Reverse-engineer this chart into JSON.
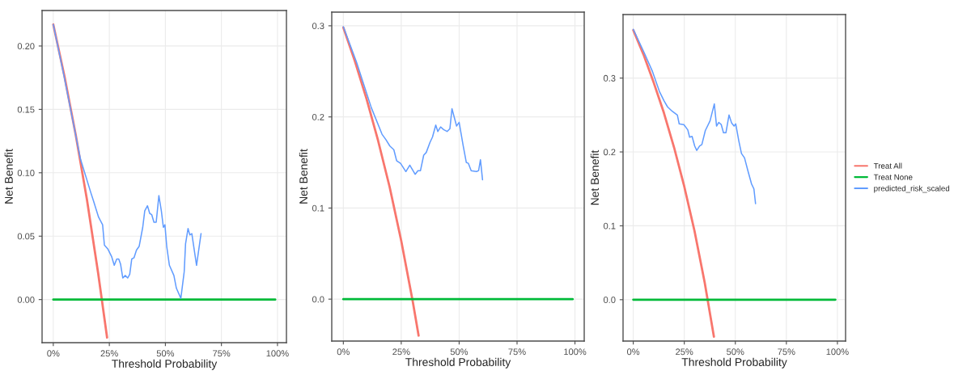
{
  "chart_data": [
    {
      "type": "line",
      "xlabel": "Threshold Probability",
      "ylabel": "Net Benefit",
      "xlim": [
        -0.05,
        1.04
      ],
      "ylim": [
        -0.034,
        0.228
      ],
      "xticks": [
        {
          "value": 0,
          "label": "0%"
        },
        {
          "value": 0.25,
          "label": "25%"
        },
        {
          "value": 0.5,
          "label": "50%"
        },
        {
          "value": 0.75,
          "label": "75%"
        },
        {
          "value": 1,
          "label": "100%"
        }
      ],
      "yticks": [
        {
          "value": 0,
          "label": "0.00"
        },
        {
          "value": 0.05,
          "label": "0.05"
        },
        {
          "value": 0.1,
          "label": "0.10"
        },
        {
          "value": 0.15,
          "label": "0.15"
        },
        {
          "value": 0.2,
          "label": "0.20"
        }
      ],
      "grid": true,
      "legend": false,
      "series": [
        {
          "color": "#f8766d",
          "x": [
            0,
            0.05,
            0.1,
            0.15,
            0.2,
            0.24
          ],
          "values": [
            0.217,
            0.176,
            0.13,
            0.079,
            0.021,
            -0.03
          ]
        },
        {
          "color": "#00ba38",
          "x": [
            0,
            0.99
          ],
          "values": [
            0,
            0
          ]
        },
        {
          "color": "#619cff",
          "x": [
            0,
            0.046,
            0.121,
            0.168,
            0.179,
            0.202,
            0.22,
            0.228,
            0.243,
            0.26,
            0.272,
            0.283,
            0.292,
            0.3,
            0.31,
            0.321,
            0.332,
            0.341,
            0.35,
            0.36,
            0.371,
            0.383,
            0.399,
            0.408,
            0.42,
            0.43,
            0.439,
            0.449,
            0.459,
            0.471,
            0.482,
            0.491,
            0.498,
            0.506,
            0.518,
            0.538,
            0.549,
            0.569,
            0.584,
            0.59,
            0.601,
            0.609,
            0.618,
            0.639,
            0.659
          ],
          "values": [
            0.217,
            0.178,
            0.111,
            0.084,
            0.078,
            0.065,
            0.059,
            0.043,
            0.04,
            0.034,
            0.027,
            0.032,
            0.032,
            0.028,
            0.017,
            0.019,
            0.017,
            0.02,
            0.032,
            0.033,
            0.039,
            0.042,
            0.057,
            0.07,
            0.074,
            0.068,
            0.067,
            0.061,
            0.061,
            0.082,
            0.07,
            0.057,
            0.059,
            0.042,
            0.027,
            0.019,
            0.009,
            0.001,
            0.022,
            0.044,
            0.056,
            0.051,
            0.052,
            0.027,
            0.052
          ]
        }
      ]
    },
    {
      "type": "line",
      "xlabel": "Threshold Probability",
      "ylabel": "Net Benefit",
      "xlim": [
        -0.05,
        1.04
      ],
      "ylim": [
        -0.046,
        0.315
      ],
      "xticks": [
        {
          "value": 0,
          "label": "0%"
        },
        {
          "value": 0.25,
          "label": "25%"
        },
        {
          "value": 0.5,
          "label": "50%"
        },
        {
          "value": 0.75,
          "label": "75%"
        },
        {
          "value": 1,
          "label": "100%"
        }
      ],
      "yticks": [
        {
          "value": 0,
          "label": "0.0"
        },
        0.1,
        0.2,
        0.3
      ],
      "grid": true,
      "legend": false,
      "series": [
        {
          "color": "#f8766d",
          "x": [
            0,
            0.05,
            0.1,
            0.15,
            0.2,
            0.25,
            0.3,
            0.325
          ],
          "values": [
            0.298,
            0.261,
            0.22,
            0.174,
            0.123,
            0.064,
            -0.003,
            -0.04
          ]
        },
        {
          "color": "#00ba38",
          "x": [
            0,
            0.99
          ],
          "values": [
            0,
            0
          ]
        },
        {
          "color": "#619cff",
          "x": [
            0,
            0.057,
            0.121,
            0.167,
            0.184,
            0.201,
            0.218,
            0.23,
            0.247,
            0.27,
            0.287,
            0.31,
            0.322,
            0.333,
            0.347,
            0.358,
            0.374,
            0.385,
            0.399,
            0.408,
            0.42,
            0.433,
            0.448,
            0.46,
            0.469,
            0.489,
            0.5,
            0.517,
            0.531,
            0.54,
            0.552,
            0.575,
            0.584,
            0.592,
            0.601
          ],
          "values": [
            0.299,
            0.26,
            0.21,
            0.181,
            0.175,
            0.168,
            0.164,
            0.152,
            0.149,
            0.14,
            0.147,
            0.137,
            0.141,
            0.141,
            0.158,
            0.161,
            0.172,
            0.178,
            0.191,
            0.184,
            0.189,
            0.186,
            0.184,
            0.187,
            0.209,
            0.19,
            0.194,
            0.169,
            0.15,
            0.149,
            0.141,
            0.14,
            0.141,
            0.153,
            0.131
          ]
        }
      ]
    },
    {
      "type": "line",
      "xlabel": "Threshold Probability",
      "ylabel": "Net Benefit",
      "xlim": [
        -0.05,
        1.04
      ],
      "ylim": [
        -0.056,
        0.386
      ],
      "xticks": [
        {
          "value": 0,
          "label": "0%"
        },
        {
          "value": 0.25,
          "label": "25%"
        },
        {
          "value": 0.5,
          "label": "50%"
        },
        {
          "value": 0.75,
          "label": "75%"
        },
        {
          "value": 1,
          "label": "100%"
        }
      ],
      "yticks": [
        {
          "value": 0,
          "label": "0.0"
        },
        0.1,
        0.2,
        0.3
      ],
      "grid": true,
      "legend": "right",
      "series": [
        {
          "name": "Treat All",
          "color": "#f8766d",
          "x": [
            0,
            0.05,
            0.1,
            0.15,
            0.2,
            0.25,
            0.3,
            0.35,
            0.395
          ],
          "values": [
            0.365,
            0.332,
            0.294,
            0.253,
            0.206,
            0.153,
            0.093,
            0.023,
            -0.05
          ]
        },
        {
          "name": "Treat None",
          "color": "#00ba38",
          "x": [
            0,
            0.99
          ],
          "values": [
            0,
            0
          ]
        },
        {
          "name": "predicted_risk_scaled",
          "color": "#619cff",
          "x": [
            0,
            0.054,
            0.094,
            0.128,
            0.151,
            0.168,
            0.191,
            0.216,
            0.225,
            0.248,
            0.267,
            0.276,
            0.288,
            0.301,
            0.311,
            0.325,
            0.336,
            0.353,
            0.376,
            0.397,
            0.408,
            0.419,
            0.431,
            0.442,
            0.454,
            0.469,
            0.482,
            0.494,
            0.502,
            0.517,
            0.53,
            0.545,
            0.562,
            0.579,
            0.591,
            0.599
          ],
          "values": [
            0.366,
            0.334,
            0.309,
            0.282,
            0.269,
            0.261,
            0.255,
            0.25,
            0.238,
            0.237,
            0.23,
            0.22,
            0.221,
            0.208,
            0.202,
            0.208,
            0.21,
            0.229,
            0.242,
            0.265,
            0.235,
            0.24,
            0.237,
            0.226,
            0.226,
            0.25,
            0.239,
            0.235,
            0.238,
            0.215,
            0.198,
            0.192,
            0.174,
            0.157,
            0.15,
            0.13
          ]
        }
      ]
    }
  ]
}
